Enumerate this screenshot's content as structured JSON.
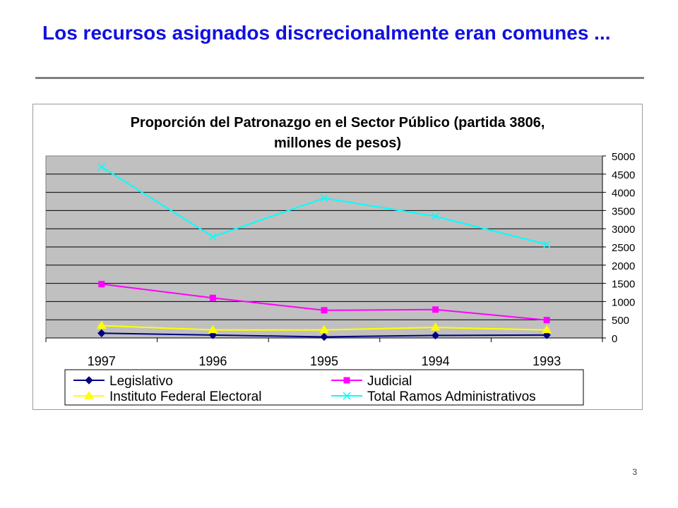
{
  "slide": {
    "title": "Los recursos asignados discrecionalmente eran comunes ...",
    "page_number": "3"
  },
  "colors": {
    "title": "#1010e0",
    "plot_background": "#c0c0c0",
    "legislativo": "#000080",
    "judicial": "#ff00ff",
    "ife": "#ffff00",
    "total_ramos": "#00ffff"
  },
  "chart_data": {
    "type": "line",
    "title": "Proporción del Patronazgo en el Sector Público (partida 3806, millones de pesos)",
    "title_lines": [
      "Proporción del Patronazgo en el Sector Público (partida 3806,",
      "millones de pesos)"
    ],
    "categories": [
      "1997",
      "1996",
      "1995",
      "1994",
      "1993"
    ],
    "ylim": [
      0,
      5000
    ],
    "yticks": [
      0,
      500,
      1000,
      1500,
      2000,
      2500,
      3000,
      3500,
      4000,
      4500,
      5000
    ],
    "y_axis_side": "right",
    "grid": true,
    "legend_position": "bottom",
    "series": [
      {
        "name": "Legislativo",
        "values": [
          130,
          80,
          30,
          70,
          80
        ],
        "color": "#000080",
        "marker": "diamond"
      },
      {
        "name": "Judicial",
        "values": [
          1480,
          1100,
          760,
          780,
          490
        ],
        "color": "#ff00ff",
        "marker": "square"
      },
      {
        "name": "Instituto Federal Electoral",
        "values": [
          340,
          220,
          220,
          290,
          220
        ],
        "color": "#ffff00",
        "marker": "triangle"
      },
      {
        "name": "Total Ramos Administrativos",
        "values": [
          4700,
          2780,
          3840,
          3340,
          2570
        ],
        "color": "#00ffff",
        "marker": "x"
      }
    ]
  }
}
